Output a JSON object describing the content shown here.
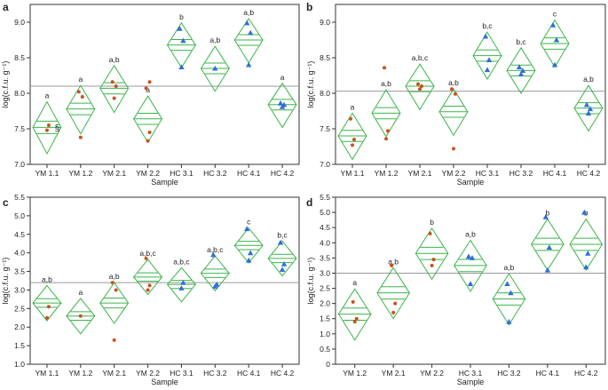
{
  "colors": {
    "diamond": "#3cb44b",
    "grand_mean": "#9a9a9a",
    "axis": "#333333",
    "text": "#222222",
    "ym_point": "#c8521c",
    "hc_point": "#2f6fd6"
  },
  "chart_data": [
    {
      "panel": "a",
      "type": "scatter",
      "subtype": "means-diamond",
      "xlabel": "Sample",
      "ylabel": "log(c.f.u. g⁻¹)",
      "ylim": [
        7.0,
        9.25
      ],
      "yticks": [
        7.0,
        7.5,
        8.0,
        8.5,
        9.0
      ],
      "ytick_labels": [
        "7.0",
        "7.5",
        "8.0",
        "8.5",
        "9.0"
      ],
      "grand_mean": 8.1,
      "annotation": "§",
      "groups": [
        {
          "label": "YM 1.1",
          "mean": 7.52,
          "ci": [
            7.15,
            7.88
          ],
          "letter": "a",
          "kind": "ym",
          "points": [
            7.48,
            7.55
          ]
        },
        {
          "label": "YM 1.2",
          "mean": 7.78,
          "ci": [
            7.43,
            8.11
          ],
          "letter": "a",
          "kind": "ym",
          "points": [
            7.38,
            7.95,
            8.02
          ]
        },
        {
          "label": "YM 2.1",
          "mean": 8.07,
          "ci": [
            7.73,
            8.39
          ],
          "letter": "a,b",
          "kind": "ym",
          "points": [
            7.93,
            8.1,
            8.16
          ]
        },
        {
          "label": "YM 2.2",
          "mean": 7.64,
          "ci": [
            7.31,
            7.96
          ],
          "letter": "a",
          "kind": "ym",
          "points": [
            7.33,
            7.45,
            8.07,
            8.16
          ]
        },
        {
          "label": "HC 3.1",
          "mean": 8.68,
          "ci": [
            8.36,
            8.99
          ],
          "letter": "b",
          "kind": "hc",
          "points": [
            8.37,
            8.74,
            8.91
          ]
        },
        {
          "label": "HC 3.2",
          "mean": 8.35,
          "ci": [
            8.03,
            8.66
          ],
          "letter": "a,b",
          "kind": "hc",
          "points": [
            8.35
          ]
        },
        {
          "label": "HC 4.1",
          "mean": 8.75,
          "ci": [
            8.43,
            9.05
          ],
          "letter": "a,b",
          "kind": "hc",
          "points": [
            8.4,
            8.85,
            8.99
          ]
        },
        {
          "label": "HC 4.2",
          "mean": 7.84,
          "ci": [
            7.52,
            8.14
          ],
          "letter": "a",
          "kind": "hc",
          "points": [
            7.81,
            7.84,
            7.86
          ]
        }
      ]
    },
    {
      "panel": "b",
      "type": "scatter",
      "subtype": "means-diamond",
      "xlabel": "Sample",
      "ylabel": "log(c.f.u. g⁻¹)",
      "ylim": [
        7.0,
        9.25
      ],
      "yticks": [
        7.0,
        7.5,
        8.0,
        8.5,
        9.0
      ],
      "ytick_labels": [
        "7.0",
        "7.5",
        "8.0",
        "8.5",
        "9.0"
      ],
      "grand_mean": 8.03,
      "groups": [
        {
          "label": "YM 1.1",
          "mean": 7.4,
          "ci": [
            7.07,
            7.72
          ],
          "letter": "a",
          "kind": "ym",
          "points": [
            7.27,
            7.35,
            7.64
          ]
        },
        {
          "label": "YM 1.2",
          "mean": 7.72,
          "ci": [
            7.39,
            8.05
          ],
          "letter": "a,b",
          "kind": "ym",
          "points": [
            7.36,
            7.47,
            8.36
          ]
        },
        {
          "label": "YM 2.1",
          "mean": 8.1,
          "ci": [
            7.77,
            8.41
          ],
          "letter": "a,b,c",
          "kind": "ym",
          "points": [
            8.06,
            8.1,
            8.13
          ]
        },
        {
          "label": "YM 2.2",
          "mean": 7.74,
          "ci": [
            7.41,
            8.06
          ],
          "letter": "a,b",
          "kind": "ym",
          "points": [
            7.22,
            7.99,
            8.06
          ]
        },
        {
          "label": "HC 3.1",
          "mean": 8.53,
          "ci": [
            8.2,
            8.86
          ],
          "letter": "b,c",
          "kind": "hc",
          "points": [
            8.33,
            8.47,
            8.8
          ]
        },
        {
          "label": "HC 3.2",
          "mean": 8.32,
          "ci": [
            8.0,
            8.64
          ],
          "letter": "b,c",
          "kind": "hc",
          "points": [
            8.27,
            8.32,
            8.37
          ]
        },
        {
          "label": "HC 4.1",
          "mean": 8.7,
          "ci": [
            8.37,
            9.03
          ],
          "letter": "c",
          "kind": "hc",
          "points": [
            8.4,
            8.75,
            8.96
          ]
        },
        {
          "label": "HC 4.2",
          "mean": 7.79,
          "ci": [
            7.47,
            8.11
          ],
          "letter": "a,b",
          "kind": "hc",
          "points": [
            7.72,
            7.78,
            7.84
          ]
        }
      ]
    },
    {
      "panel": "c",
      "type": "scatter",
      "subtype": "means-diamond",
      "xlabel": "Sample",
      "ylabel": "log(c.f.u. g⁻¹)",
      "ylim": [
        1.0,
        5.5
      ],
      "yticks": [
        1.0,
        1.5,
        2.0,
        2.5,
        3.0,
        3.5,
        4.0,
        4.5,
        5.0,
        5.5
      ],
      "ytick_labels": [
        "1.0",
        "1.5",
        "2.0",
        "2.5",
        "3.0",
        "3.5",
        "4.0",
        "4.5",
        "5.0",
        "5.5"
      ],
      "grand_mean": 3.2,
      "groups": [
        {
          "label": "YM 1.1",
          "mean": 2.65,
          "ci": [
            2.17,
            3.12
          ],
          "letter": "a,b",
          "kind": "ym",
          "points": [
            2.25,
            2.55
          ]
        },
        {
          "label": "YM 1.2",
          "mean": 2.3,
          "ci": [
            1.82,
            2.77
          ],
          "letter": "a",
          "kind": "ym",
          "points": [
            2.3
          ]
        },
        {
          "label": "YM 2.1",
          "mean": 2.65,
          "ci": [
            2.1,
            3.2
          ],
          "letter": "a,b",
          "kind": "ym",
          "points": [
            1.65,
            3.0,
            3.2
          ]
        },
        {
          "label": "YM 2.2",
          "mean": 3.35,
          "ci": [
            2.88,
            3.82
          ],
          "letter": "a,b,c",
          "kind": "ym",
          "points": [
            3.0,
            3.12,
            3.85
          ]
        },
        {
          "label": "HC 3.1",
          "mean": 3.15,
          "ci": [
            2.68,
            3.6
          ],
          "letter": "a,b,c",
          "kind": "hc",
          "points": [
            3.05,
            3.2
          ]
        },
        {
          "label": "HC 3.2",
          "mean": 3.45,
          "ci": [
            2.98,
            3.92
          ],
          "letter": "a,b,c",
          "kind": "hc",
          "points": [
            3.1,
            3.15,
            3.95
          ]
        },
        {
          "label": "HC 4.1",
          "mean": 4.2,
          "ci": [
            3.73,
            4.67
          ],
          "letter": "c",
          "kind": "hc",
          "points": [
            3.8,
            4.0,
            4.65
          ]
        },
        {
          "label": "HC 4.2",
          "mean": 3.85,
          "ci": [
            3.38,
            4.32
          ],
          "letter": "b,c",
          "kind": "hc",
          "points": [
            3.55,
            3.7,
            4.28
          ]
        }
      ]
    },
    {
      "panel": "d",
      "type": "scatter",
      "subtype": "means-diamond",
      "xlabel": "Sample",
      "ylabel": "log(c.f.u. g⁻¹)",
      "ylim": [
        0.0,
        5.5
      ],
      "yticks": [
        0.0,
        0.5,
        1.0,
        1.5,
        2.0,
        2.5,
        3.0,
        3.5,
        4.0,
        4.5,
        5.0,
        5.5
      ],
      "ytick_labels": [
        "0",
        "0.5",
        "1.0",
        "1.5",
        "2.0",
        "2.5",
        "3.0",
        "3.5",
        "4.0",
        "4.5",
        "5.0",
        "5.5"
      ],
      "grand_mean": 3.0,
      "groups": [
        {
          "label": "YM 1.2",
          "mean": 1.65,
          "ci": [
            0.8,
            2.48
          ],
          "letter": "a",
          "kind": "ym",
          "points": [
            1.4,
            1.5,
            2.05
          ]
        },
        {
          "label": "YM 2.1",
          "mean": 2.35,
          "ci": [
            1.5,
            3.18
          ],
          "letter": "a,b",
          "kind": "ym",
          "points": [
            1.7,
            2.0,
            3.25
          ]
        },
        {
          "label": "YM 2.2",
          "mean": 3.65,
          "ci": [
            2.8,
            4.48
          ],
          "letter": "b",
          "kind": "ym",
          "points": [
            3.25,
            3.45,
            4.3
          ]
        },
        {
          "label": "HC 3.1",
          "mean": 3.25,
          "ci": [
            2.4,
            4.08
          ],
          "letter": "a,b",
          "kind": "hc",
          "points": [
            2.65,
            3.5,
            3.55
          ]
        },
        {
          "label": "HC 3.2",
          "mean": 2.15,
          "ci": [
            1.3,
            2.98
          ],
          "letter": "a,b",
          "kind": "hc",
          "points": [
            1.4,
            2.35,
            2.65
          ]
        },
        {
          "label": "HC 4.1",
          "mean": 3.95,
          "ci": [
            3.1,
            4.78
          ],
          "letter": "b",
          "kind": "hc",
          "points": [
            3.1,
            3.85,
            4.85
          ]
        },
        {
          "label": "HC 4.2",
          "mean": 3.95,
          "ci": [
            3.1,
            4.78
          ],
          "letter": "b",
          "kind": "hc",
          "points": [
            3.2,
            3.65,
            5.0
          ]
        }
      ]
    }
  ]
}
